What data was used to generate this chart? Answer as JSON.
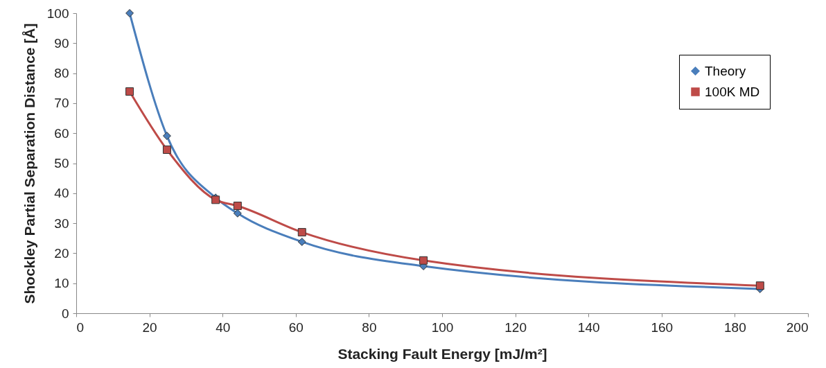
{
  "chart_data": {
    "type": "line",
    "xlabel": "Stacking Fault Energy [mJ/m²]",
    "ylabel": "Shockley Partial Separation Distance  [Å]",
    "x": [
      14.6,
      24.8,
      38.1,
      44.1,
      61.7,
      94.9,
      186.9
    ],
    "series": [
      {
        "name": "Theory",
        "color": "#4a7ebb",
        "marker": "diamond",
        "values": [
          100,
          59.1,
          38.5,
          33.3,
          23.8,
          15.7,
          8.1
        ]
      },
      {
        "name": "100K MD",
        "color": "#be4b48",
        "marker": "square",
        "values": [
          73.9,
          54.5,
          37.8,
          35.8,
          27.0,
          17.6,
          9.2
        ]
      }
    ],
    "xlim": [
      0,
      200
    ],
    "xticks": [
      0,
      20,
      40,
      60,
      80,
      100,
      120,
      140,
      160,
      180,
      200
    ],
    "ylim": [
      0,
      100
    ],
    "yticks": [
      0,
      10,
      20,
      30,
      40,
      50,
      60,
      70,
      80,
      90,
      100
    ],
    "grid": false,
    "legend": "top right",
    "line_style": "solid"
  }
}
